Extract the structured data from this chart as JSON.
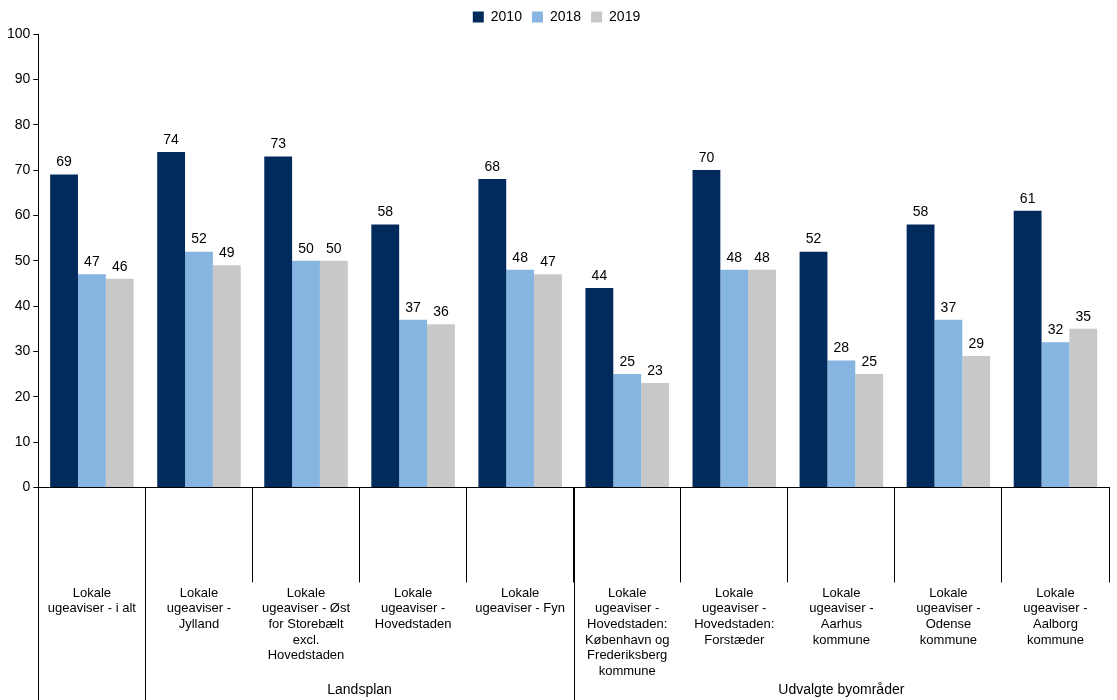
{
  "chart_data": {
    "type": "bar",
    "categories": [
      "Lokale ugeaviser - i alt",
      "Lokale ugeaviser - Jylland",
      "Lokale ugeaviser - Øst for Storebælt excl. Hovedstaden",
      "Lokale ugeaviser - Hovedstaden",
      "Lokale ugeaviser - Fyn",
      "Lokale ugeaviser - Hovedstaden: København og Frederiksberg kommune",
      "Lokale ugeaviser - Hovedstaden: Forstæder",
      "Lokale ugeaviser - Aarhus kommune",
      "Lokale ugeaviser - Odense kommune",
      "Lokale ugeaviser - Aalborg kommune"
    ],
    "series": [
      {
        "name": "2010",
        "color": "#002b5c",
        "values": [
          69,
          74,
          73,
          58,
          68,
          44,
          70,
          52,
          58,
          61
        ]
      },
      {
        "name": "2018",
        "color": "#85b5e0",
        "values": [
          47,
          52,
          50,
          37,
          48,
          25,
          48,
          28,
          37,
          32
        ]
      },
      {
        "name": "2019",
        "color": "#c8c8c8",
        "values": [
          46,
          49,
          50,
          36,
          47,
          23,
          48,
          25,
          29,
          35
        ]
      }
    ],
    "ylim": [
      0,
      100
    ],
    "yticks": [
      0,
      10,
      20,
      30,
      40,
      50,
      60,
      70,
      80,
      90,
      100
    ],
    "data_labels": true,
    "grid": false,
    "legend": "top",
    "annotations": [
      "Landsplan",
      "Udvalgte byområder"
    ]
  }
}
